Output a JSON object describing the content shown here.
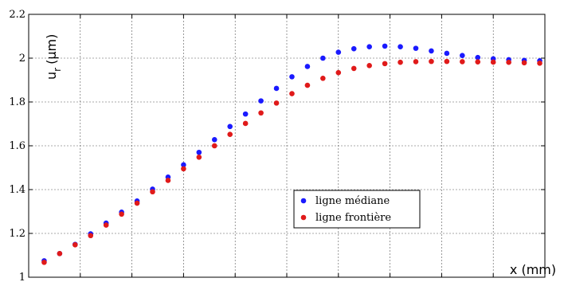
{
  "chart_data": {
    "type": "scatter",
    "title": "",
    "xlabel": "x (mm)",
    "ylabel": "u",
    "ylabel_sub": "r",
    "ylabel_unit": "(µm)",
    "ylim": [
      1.0,
      2.2
    ],
    "xlim": [
      0,
      100
    ],
    "grid": true,
    "legend_position": "center-right",
    "yticks": [
      1.0,
      1.2,
      1.4,
      1.6,
      1.8,
      2.0,
      2.2
    ],
    "ytick_labels": [
      "1",
      "1.2",
      "1.4",
      "1.6",
      "1.8",
      "2",
      "2.2"
    ],
    "xticks": [
      0,
      10,
      20,
      30,
      40,
      50,
      60,
      70,
      80,
      90,
      100
    ],
    "series": [
      {
        "name": "ligne médiane",
        "color": "#1a1aff",
        "x": [
          3,
          6,
          9,
          12,
          15,
          18,
          21,
          24,
          27,
          30,
          33,
          36,
          39,
          42,
          45,
          48,
          51,
          54,
          57,
          60,
          63,
          66,
          69,
          72,
          75,
          78,
          81,
          84,
          87,
          90,
          93,
          96,
          99
        ],
        "values": [
          1.075,
          1.108,
          1.15,
          1.198,
          1.247,
          1.297,
          1.348,
          1.402,
          1.457,
          1.513,
          1.57,
          1.628,
          1.688,
          1.745,
          1.805,
          1.862,
          1.915,
          1.962,
          2.0,
          2.027,
          2.043,
          2.052,
          2.055,
          2.052,
          2.045,
          2.033,
          2.022,
          2.012,
          2.003,
          1.997,
          1.993,
          1.99,
          1.988
        ]
      },
      {
        "name": "ligne frontière",
        "color": "#e01a1a",
        "x": [
          3,
          6,
          9,
          12,
          15,
          18,
          21,
          24,
          27,
          30,
          33,
          36,
          39,
          42,
          45,
          48,
          51,
          54,
          57,
          60,
          63,
          66,
          69,
          72,
          75,
          78,
          81,
          84,
          87,
          90,
          93,
          96,
          99
        ],
        "values": [
          1.068,
          1.108,
          1.148,
          1.19,
          1.238,
          1.288,
          1.338,
          1.39,
          1.442,
          1.495,
          1.548,
          1.6,
          1.652,
          1.702,
          1.75,
          1.795,
          1.838,
          1.876,
          1.908,
          1.934,
          1.953,
          1.966,
          1.975,
          1.981,
          1.984,
          1.985,
          1.985,
          1.984,
          1.983,
          1.982,
          1.981,
          1.979,
          1.977
        ]
      }
    ]
  }
}
